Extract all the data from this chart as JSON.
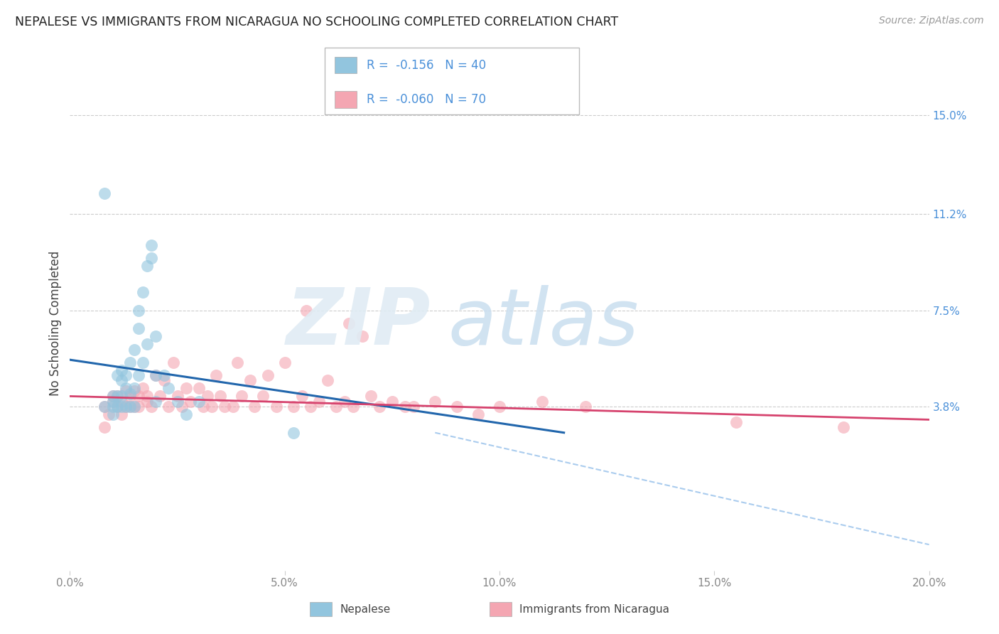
{
  "title": "NEPALESE VS IMMIGRANTS FROM NICARAGUA NO SCHOOLING COMPLETED CORRELATION CHART",
  "source": "Source: ZipAtlas.com",
  "ylabel": "No Schooling Completed",
  "legend_label1": "Nepalese",
  "legend_label2": "Immigrants from Nicaragua",
  "r1": "-0.156",
  "n1": "40",
  "r2": "-0.060",
  "n2": "70",
  "color1": "#92c5de",
  "color2": "#f4a6b2",
  "color1_line": "#2166ac",
  "color2_line": "#d6436e",
  "color_dash": "#aaccee",
  "xlim": [
    0.0,
    0.2
  ],
  "ylim": [
    -0.025,
    0.165
  ],
  "xtick_labels": [
    "0.0%",
    "5.0%",
    "10.0%",
    "15.0%",
    "20.0%"
  ],
  "xtick_vals": [
    0.0,
    0.05,
    0.1,
    0.15,
    0.2
  ],
  "ytick_labels_right": [
    "15.0%",
    "11.2%",
    "7.5%",
    "3.8%"
  ],
  "ytick_vals_right": [
    0.15,
    0.112,
    0.075,
    0.038
  ],
  "nepalese_x": [
    0.008,
    0.01,
    0.01,
    0.01,
    0.01,
    0.011,
    0.011,
    0.011,
    0.012,
    0.012,
    0.012,
    0.012,
    0.013,
    0.013,
    0.013,
    0.014,
    0.014,
    0.014,
    0.015,
    0.015,
    0.015,
    0.016,
    0.016,
    0.016,
    0.017,
    0.017,
    0.018,
    0.018,
    0.019,
    0.019,
    0.02,
    0.02,
    0.02,
    0.022,
    0.023,
    0.025,
    0.027,
    0.03,
    0.052,
    0.008
  ],
  "nepalese_y": [
    0.038,
    0.038,
    0.04,
    0.042,
    0.035,
    0.038,
    0.042,
    0.05,
    0.038,
    0.042,
    0.048,
    0.052,
    0.038,
    0.045,
    0.05,
    0.038,
    0.043,
    0.055,
    0.038,
    0.045,
    0.06,
    0.05,
    0.068,
    0.075,
    0.055,
    0.082,
    0.062,
    0.092,
    0.095,
    0.1,
    0.04,
    0.05,
    0.065,
    0.05,
    0.045,
    0.04,
    0.035,
    0.04,
    0.028,
    0.12
  ],
  "nicaragua_x": [
    0.008,
    0.009,
    0.01,
    0.01,
    0.011,
    0.011,
    0.012,
    0.012,
    0.013,
    0.013,
    0.014,
    0.014,
    0.015,
    0.015,
    0.016,
    0.016,
    0.017,
    0.018,
    0.018,
    0.019,
    0.02,
    0.021,
    0.022,
    0.023,
    0.024,
    0.025,
    0.026,
    0.027,
    0.028,
    0.03,
    0.031,
    0.032,
    0.033,
    0.034,
    0.035,
    0.036,
    0.038,
    0.039,
    0.04,
    0.042,
    0.043,
    0.045,
    0.046,
    0.048,
    0.05,
    0.052,
    0.054,
    0.056,
    0.058,
    0.06,
    0.062,
    0.064,
    0.066,
    0.068,
    0.07,
    0.072,
    0.075,
    0.078,
    0.08,
    0.085,
    0.09,
    0.095,
    0.1,
    0.11,
    0.12,
    0.055,
    0.065,
    0.155,
    0.18,
    0.008
  ],
  "nicaragua_y": [
    0.038,
    0.035,
    0.04,
    0.042,
    0.038,
    0.042,
    0.035,
    0.04,
    0.038,
    0.044,
    0.038,
    0.042,
    0.038,
    0.044,
    0.038,
    0.042,
    0.045,
    0.04,
    0.042,
    0.038,
    0.05,
    0.042,
    0.048,
    0.038,
    0.055,
    0.042,
    0.038,
    0.045,
    0.04,
    0.045,
    0.038,
    0.042,
    0.038,
    0.05,
    0.042,
    0.038,
    0.038,
    0.055,
    0.042,
    0.048,
    0.038,
    0.042,
    0.05,
    0.038,
    0.055,
    0.038,
    0.042,
    0.038,
    0.04,
    0.048,
    0.038,
    0.04,
    0.038,
    0.065,
    0.042,
    0.038,
    0.04,
    0.038,
    0.038,
    0.04,
    0.038,
    0.035,
    0.038,
    0.04,
    0.038,
    0.075,
    0.07,
    0.032,
    0.03,
    0.03
  ],
  "nep_line_x": [
    0.0,
    0.115
  ],
  "nep_line_y": [
    0.056,
    0.028
  ],
  "nic_line_x": [
    0.0,
    0.2
  ],
  "nic_line_y": [
    0.042,
    0.033
  ],
  "dash_line_x": [
    0.085,
    0.2
  ],
  "dash_line_y": [
    0.028,
    -0.015
  ],
  "watermark_zip": "ZIP",
  "watermark_atlas": "atlas",
  "background_color": "#ffffff",
  "grid_color": "#cccccc",
  "title_color": "#222222",
  "source_color": "#999999",
  "axis_label_color": "#444444",
  "tick_color": "#888888",
  "right_tick_color": "#4a90d9"
}
